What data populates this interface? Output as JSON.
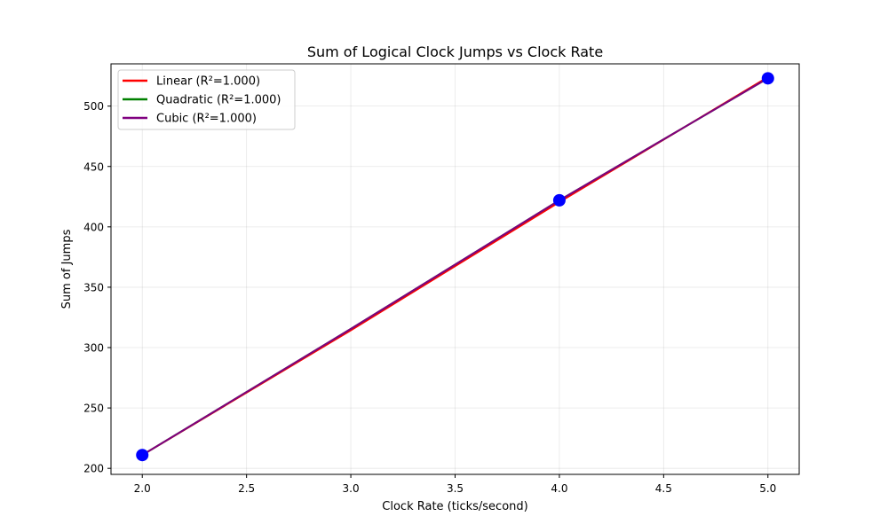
{
  "chart_data": {
    "type": "scatter",
    "title": "Sum of Logical Clock Jumps vs Clock Rate",
    "xlabel": "Clock Rate (ticks/second)",
    "ylabel": "Sum of Jumps",
    "xlim": [
      1.85,
      5.15
    ],
    "ylim": [
      195,
      535
    ],
    "x_ticks": [
      "2.0",
      "2.5",
      "3.0",
      "3.5",
      "4.0",
      "4.5",
      "5.0"
    ],
    "y_ticks": [
      "200",
      "250",
      "300",
      "350",
      "400",
      "450",
      "500"
    ],
    "grid": true,
    "legend_position": "top-left",
    "points": {
      "color": "#0000ff",
      "x": [
        2.0,
        4.0,
        5.0
      ],
      "y": [
        211,
        422,
        523
      ]
    },
    "series": [
      {
        "name": "Linear (R²=1.000)",
        "color": "#ff0000",
        "x": [
          2.0,
          3.0,
          4.0,
          5.0
        ],
        "y": [
          211,
          314.3,
          420.5,
          524
        ]
      },
      {
        "name": "Quadratic (R²=1.000)",
        "color": "#008000",
        "x": [
          2.0,
          3.0,
          4.0,
          5.0
        ],
        "y": [
          211,
          315.5,
          422,
          523
        ]
      },
      {
        "name": "Cubic (R²=1.000)",
        "color": "#800080",
        "x": [
          2.0,
          3.0,
          4.0,
          5.0
        ],
        "y": [
          211,
          315.5,
          422,
          523
        ]
      }
    ]
  }
}
